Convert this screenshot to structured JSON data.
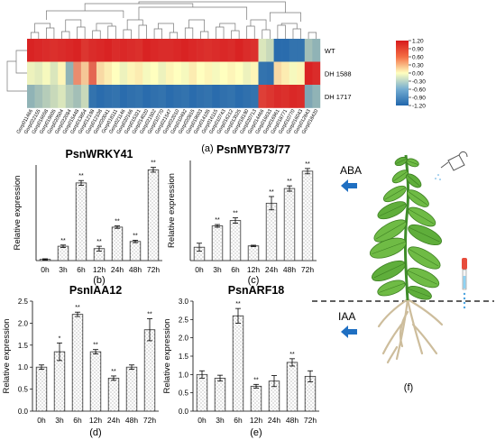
{
  "heatmap": {
    "rows": [
      "WT",
      "DH 1588",
      "DH 1717"
    ],
    "genes": [
      "Gorp011466",
      "Gorp022155",
      "Gorp016658",
      "Gorp019605",
      "Gorp020504",
      "Gorp022084",
      "Gorp015448",
      "Gorp013854",
      "Gorp012198",
      "Gorp012108",
      "Gorp020041",
      "Gorp018111",
      "Gorp021146",
      "Gorp020166",
      "Gorp015321",
      "Gorp014020",
      "Gorp021502",
      "Gorp010770",
      "Gorp021547",
      "Gorp022010",
      "Gorp010492",
      "Gorp020815",
      "Gorp019603",
      "Gorp014105",
      "Gorp016115",
      "Gorp010743",
      "Gorp016212",
      "Gorp013525",
      "Gorp018190",
      "Gorp020713",
      "Gorp014466",
      "Gorp016633",
      "Gorp016961",
      "Gorp018771",
      "Gorp010770",
      "Gorp016043",
      "Gorp012843",
      "Gorp018420"
    ],
    "legend_ticks": [
      "1.20",
      "0.90",
      "0.60",
      "0.30",
      "0.00",
      "-0.30",
      "-0.60",
      "-0.90",
      "-1.20"
    ],
    "colors": {
      "high": "#d7191c",
      "mid": "#ffffbf",
      "low": "#2166ac"
    },
    "values": [
      [
        1.15,
        1.12,
        1.1,
        1.08,
        1.1,
        1.12,
        1.15,
        1.05,
        1.1,
        1.12,
        1.15,
        1.1,
        1.12,
        1.1,
        1.08,
        1.15,
        1.12,
        1.1,
        1.1,
        1.12,
        1.15,
        1.12,
        1.1,
        1.08,
        1.1,
        1.12,
        1.1,
        1.15,
        1.1,
        1.08,
        -0.2,
        -0.3,
        -1.15,
        -1.15,
        -1.1,
        -1.1,
        -0.5,
        -0.6
      ],
      [
        -0.1,
        -0.15,
        -0.05,
        -0.2,
        0.05,
        -0.6,
        0.6,
        0.3,
        0.8,
        0.2,
        0.1,
        0.0,
        -0.1,
        0.05,
        0.1,
        -0.05,
        0.0,
        -0.1,
        0.05,
        0.0,
        -0.05,
        0.1,
        0.0,
        0.05,
        -0.05,
        0.0,
        0.05,
        0.0,
        -0.1,
        0.05,
        -1.1,
        -1.12,
        0.2,
        0.1,
        -0.05,
        0.05,
        1.15,
        1.1
      ],
      [
        -0.6,
        -0.5,
        -0.4,
        -0.3,
        -0.2,
        -0.4,
        -0.5,
        -0.3,
        -1.1,
        -1.15,
        -1.12,
        -1.1,
        -1.15,
        -1.12,
        -1.1,
        -1.15,
        -1.12,
        -1.1,
        -1.15,
        -1.12,
        -1.1,
        -1.15,
        -1.12,
        -1.1,
        -1.15,
        -1.12,
        -1.1,
        -1.15,
        -1.12,
        -1.1,
        1.0,
        1.05,
        1.1,
        1.08,
        1.12,
        1.1,
        -0.7,
        -0.6
      ]
    ]
  },
  "panel_a_label": "(a)",
  "chart_data": [
    {
      "type": "bar",
      "title": "PsnWRKY41",
      "panel_label": "(b)",
      "ylabel": "Relative expression",
      "categories": [
        "0h",
        "3h",
        "6h",
        "12h",
        "24h",
        "48h",
        "72h"
      ],
      "values": [
        1.0,
        12,
        65,
        10,
        28,
        16,
        76
      ],
      "errors": [
        0.5,
        1,
        2,
        2,
        1,
        1,
        2
      ],
      "significance": [
        "",
        "**",
        "**",
        "**",
        "**",
        "**",
        "**"
      ],
      "ylim": [
        0,
        80
      ],
      "yticks": [],
      "fill": "dotted"
    },
    {
      "type": "bar",
      "title": "PsnMYB73/77",
      "panel_label": "(c)",
      "ylabel": "Relative expression",
      "categories": [
        "0h",
        "3h",
        "6h",
        "12h",
        "24h",
        "48h",
        "72h"
      ],
      "values": [
        1.0,
        2.6,
        3.0,
        1.1,
        4.3,
        5.4,
        6.7
      ],
      "errors": [
        0.3,
        0.1,
        0.2,
        0.05,
        0.5,
        0.2,
        0.2
      ],
      "significance": [
        "",
        "**",
        "**",
        "",
        "**",
        "**",
        "**"
      ],
      "ylim": [
        0,
        7.5
      ],
      "yticks": [],
      "fill": "dotted"
    },
    {
      "type": "bar",
      "title": "PsnIAA12",
      "panel_label": "(d)",
      "ylabel": "Relative expression",
      "categories": [
        "0h",
        "3h",
        "6h",
        "12h",
        "24h",
        "48h",
        "72h"
      ],
      "values": [
        1.0,
        1.35,
        2.2,
        1.35,
        0.75,
        1.0,
        1.85
      ],
      "errors": [
        0.05,
        0.2,
        0.05,
        0.05,
        0.05,
        0.05,
        0.25
      ],
      "significance": [
        "",
        "*",
        "**",
        "**",
        "**",
        "",
        "**"
      ],
      "ylim": [
        0,
        2.5
      ],
      "yticks": [
        "0.0",
        "0.5",
        "1.0",
        "1.5",
        "2.0",
        "2.5"
      ],
      "fill": "dotted"
    },
    {
      "type": "bar",
      "title": "PsnARF18",
      "panel_label": "(e)",
      "ylabel": "Relative expression",
      "categories": [
        "0h",
        "3h",
        "6h",
        "12h",
        "24h",
        "48h",
        "72h"
      ],
      "values": [
        1.0,
        0.9,
        2.6,
        0.68,
        0.82,
        1.33,
        0.95
      ],
      "errors": [
        0.1,
        0.08,
        0.2,
        0.05,
        0.15,
        0.1,
        0.15
      ],
      "significance": [
        "",
        "",
        "**",
        "**",
        "",
        "**",
        ""
      ],
      "ylim": [
        0,
        3.0
      ],
      "yticks": [
        "0.0",
        "0.5",
        "1.0",
        "1.5",
        "2.0",
        "2.5",
        "3.0"
      ],
      "fill": "dotted"
    }
  ],
  "panel_f": {
    "label": "(f)",
    "aba_label": "ABA",
    "iaa_label": "IAA"
  }
}
